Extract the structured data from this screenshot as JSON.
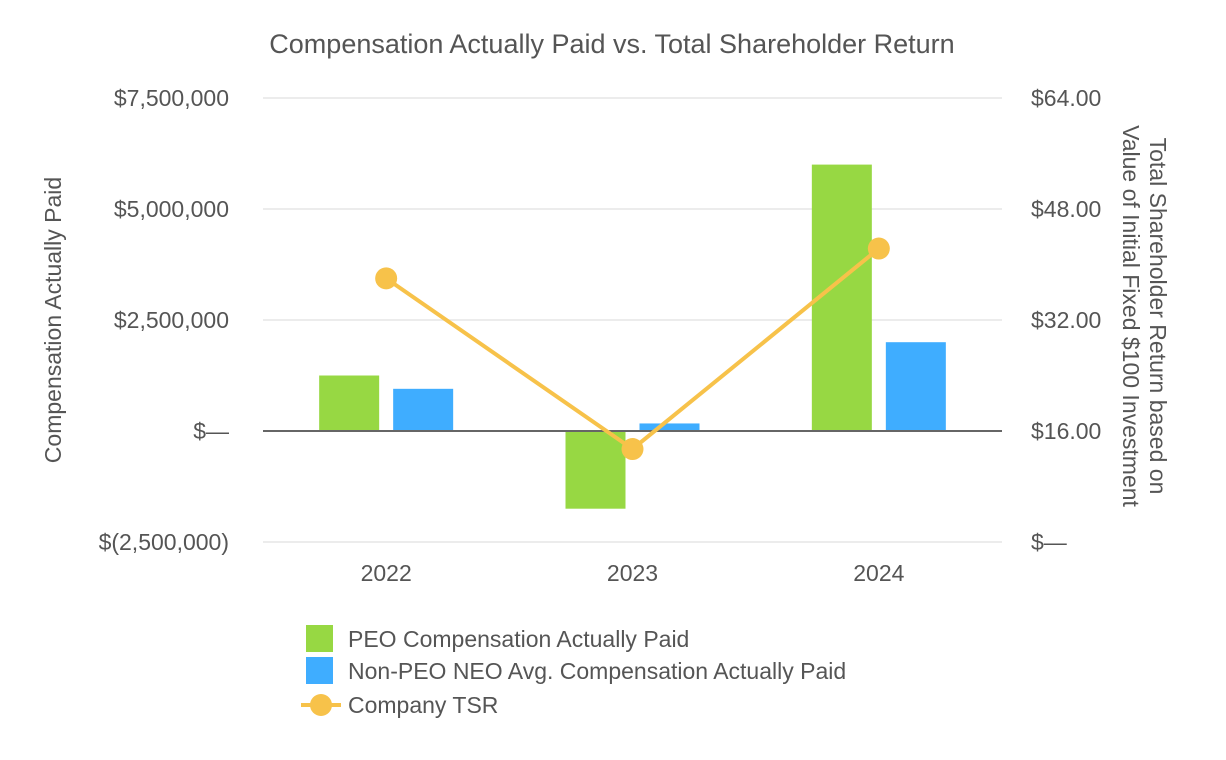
{
  "chart_data": {
    "type": "bar",
    "title": "Compensation Actually Paid vs. Total Shareholder Return",
    "categories": [
      "2022",
      "2023",
      "2024"
    ],
    "ylabel_left": "Compensation Actually Paid",
    "ylabel_right": [
      "Total Shareholder Return based on",
      "Value of Initial Fixed $100 Investment"
    ],
    "ylim_left": [
      -2500000,
      7500000
    ],
    "ylim_right": [
      0,
      64
    ],
    "yticks_left": [
      {
        "value": 7500000,
        "label": "$7,500,000"
      },
      {
        "value": 5000000,
        "label": "$5,000,000"
      },
      {
        "value": 2500000,
        "label": "$2,500,000"
      },
      {
        "value": 0,
        "label": "$—"
      },
      {
        "value": -2500000,
        "label": "$(2,500,000)"
      }
    ],
    "yticks_right": [
      {
        "value": 64,
        "label": "$64.00"
      },
      {
        "value": 48,
        "label": "$48.00"
      },
      {
        "value": 32,
        "label": "$32.00"
      },
      {
        "value": 16,
        "label": "$16.00"
      },
      {
        "value": 0,
        "label": "$—"
      }
    ],
    "series": [
      {
        "name": "PEO Compensation Actually Paid",
        "type": "bar",
        "axis": "left",
        "color": "#97d843",
        "values": [
          1250000,
          -1750000,
          6000000
        ]
      },
      {
        "name": "Non-PEO NEO Avg. Compensation Actually Paid",
        "type": "bar",
        "axis": "left",
        "color": "#3fadff",
        "values": [
          950000,
          170000,
          2000000
        ]
      },
      {
        "name": "Company TSR",
        "type": "line",
        "axis": "right",
        "color": "#f7c24a",
        "values": [
          38.0,
          13.4,
          42.3
        ]
      }
    ],
    "grid": true,
    "legend": "bottom-left"
  }
}
